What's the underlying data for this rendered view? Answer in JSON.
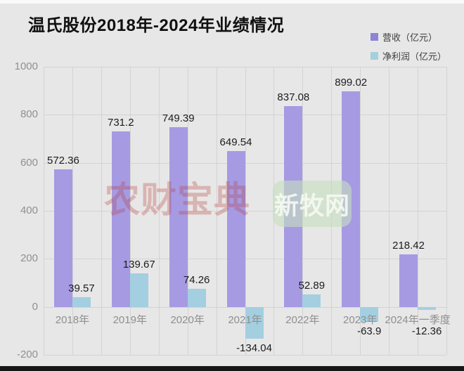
{
  "header": {
    "title": "温氏股份2018年-2024年业绩情况"
  },
  "legend": {
    "items": [
      {
        "label": "营收（亿元）",
        "color": "#8d84d4"
      },
      {
        "label": "净利润（亿元）",
        "color": "#a5cede"
      }
    ]
  },
  "watermarks": {
    "red_text": "农财宝典",
    "green_text": "新牧网"
  },
  "chart_data": {
    "type": "bar",
    "title": "温氏股份2018年-2024年业绩情况",
    "categories": [
      "2018年",
      "2019年",
      "2020年",
      "2021年",
      "2022年",
      "2023年",
      "2024年一季度"
    ],
    "series": [
      {
        "name": "营收（亿元）",
        "color": "#a69ae3",
        "values": [
          572.36,
          731.2,
          749.39,
          649.54,
          837.08,
          899.02,
          218.42
        ]
      },
      {
        "name": "净利润（亿元）",
        "color": "#a3cfe0",
        "values": [
          39.57,
          139.67,
          74.26,
          -134.04,
          52.89,
          -63.9,
          -12.36
        ]
      }
    ],
    "ylim": [
      -200,
      1000
    ],
    "yticks": [
      1000,
      800,
      600,
      400,
      200,
      0,
      -200
    ],
    "grid": true,
    "legend_position": "top-right",
    "value_labels": true,
    "xlabel": "",
    "ylabel": ""
  },
  "colors": {
    "background": "#e8e7e7",
    "gridline": "#d3d3d3",
    "tick_text": "#909090",
    "value_text": "#1c1c1c",
    "watermark_red": "rgba(178,62,58,0.30)",
    "watermark_green_bg": "rgba(198,222,190,0.62)"
  }
}
